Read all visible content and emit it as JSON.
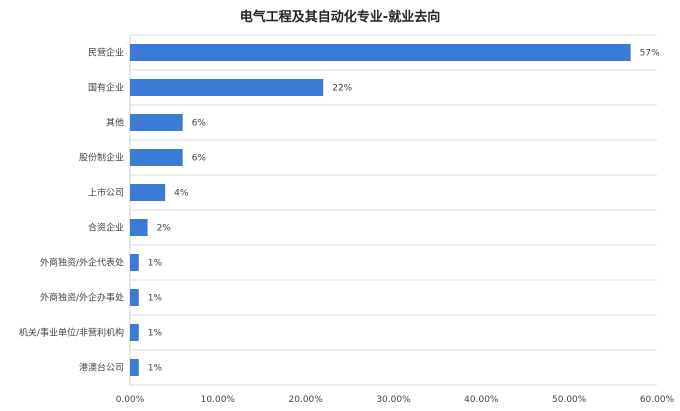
{
  "chart_data": {
    "type": "bar",
    "orientation": "horizontal",
    "title": "电气工程及其自动化专业-就业去向",
    "categories": [
      "民营企业",
      "国有企业",
      "其他",
      "股份制企业",
      "上市公司",
      "合资企业",
      "外商独资/外企代表处",
      "外商独资/外企办事处",
      "机关/事业单位/非营利机构",
      "港澳台公司"
    ],
    "values": [
      57,
      22,
      6,
      6,
      4,
      2,
      1,
      1,
      1,
      1
    ],
    "data_labels": [
      "57%",
      "22%",
      "6%",
      "6%",
      "4%",
      "2%",
      "1%",
      "1%",
      "1%",
      "1%"
    ],
    "xlim": [
      0,
      60
    ],
    "xticks": [
      "0.00%",
      "10.00%",
      "20.00%",
      "30.00%",
      "40.00%",
      "50.00%",
      "60.00%"
    ],
    "xlabel": "",
    "ylabel": "",
    "grid": "horizontal separators",
    "bar_color": "#3a7bd5"
  }
}
